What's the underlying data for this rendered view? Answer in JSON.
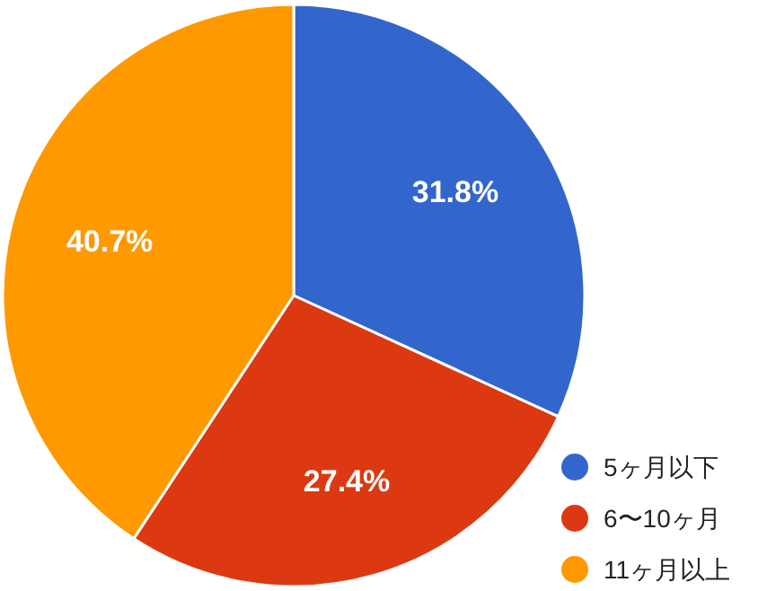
{
  "chart_data": {
    "type": "pie",
    "categories": [
      "5ヶ月以下",
      "6〜10ヶ月",
      "11ヶ月以上"
    ],
    "values": [
      31.8,
      27.4,
      40.7
    ],
    "colors": [
      "#3366cc",
      "#dc3912",
      "#ff9900"
    ],
    "value_labels": [
      "31.8%",
      "27.4%",
      "40.7%"
    ],
    "legend": "bottom right"
  }
}
